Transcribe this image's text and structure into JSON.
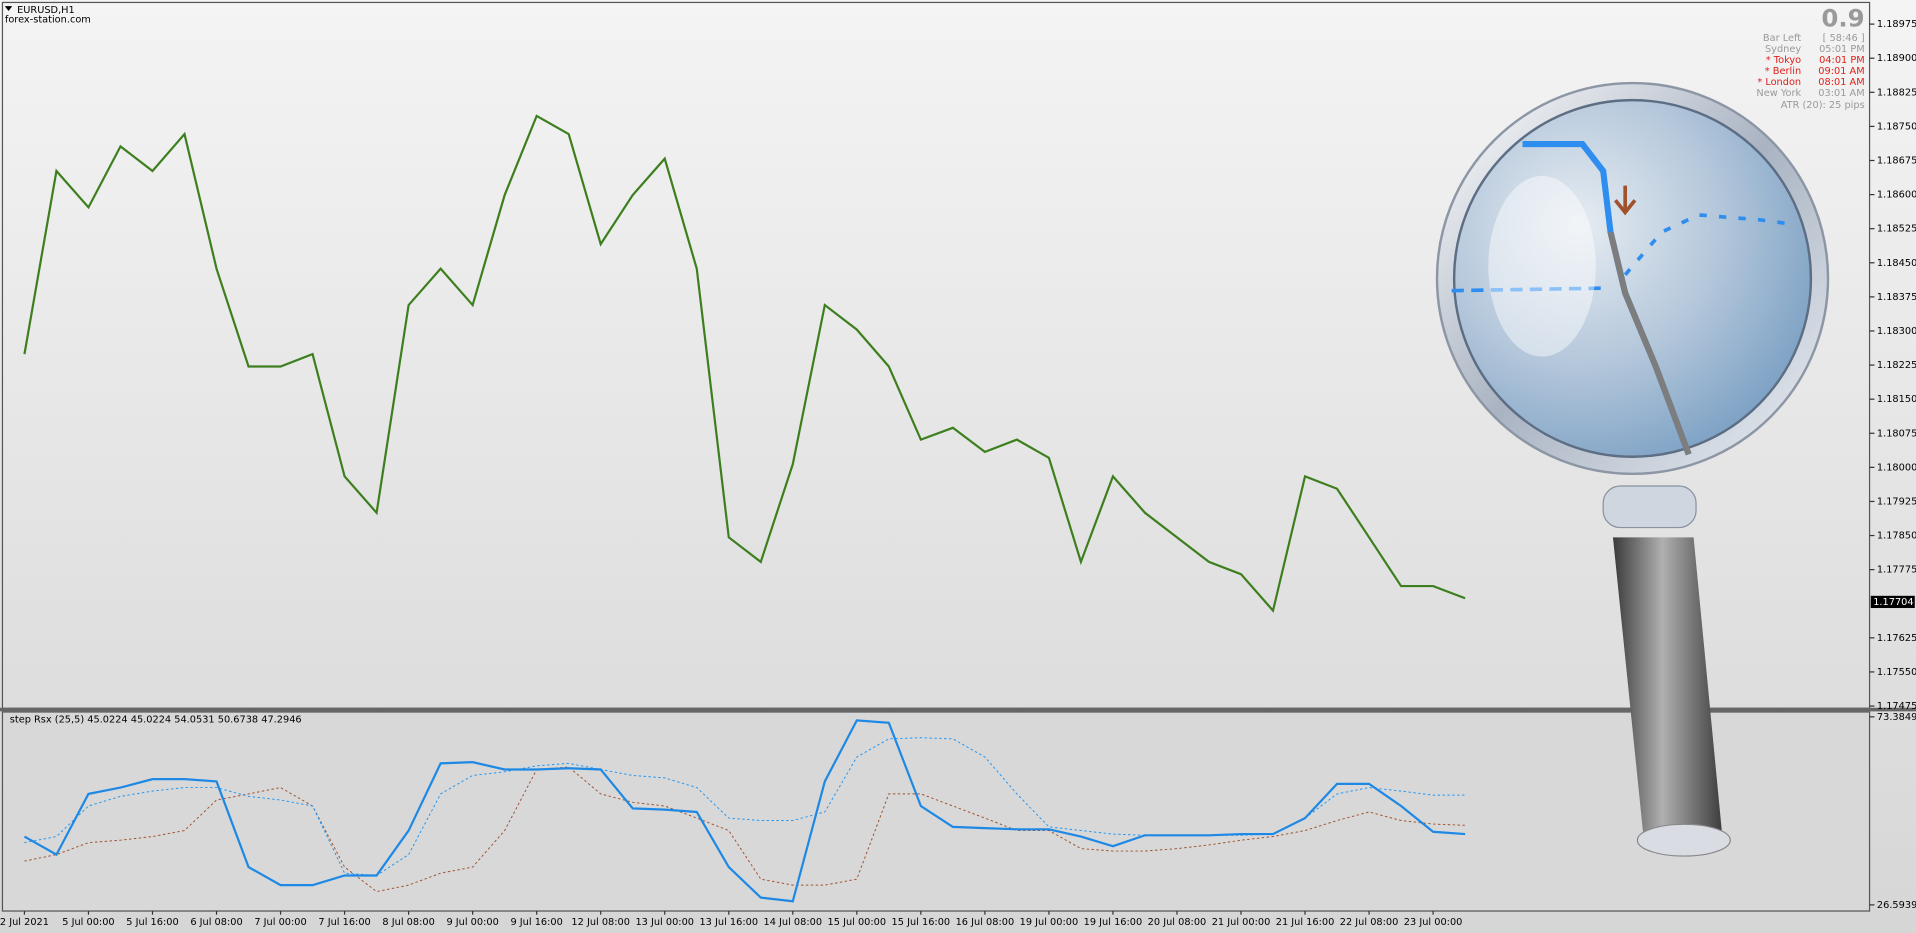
{
  "header": {
    "symbol": "EURUSD,H1",
    "source": "forex-station.com"
  },
  "info_panel": {
    "spread": "0.9",
    "rows": [
      {
        "label": "Bar Left",
        "value": "[ 58:46 ]"
      },
      {
        "label": "Sydney",
        "value": "05:01 PM"
      },
      {
        "label": "* Tokyo",
        "value": "04:01 PM"
      },
      {
        "label": "* Berlin",
        "value": "09:01 AM"
      },
      {
        "label": "* London",
        "value": "08:01 AM"
      },
      {
        "label": "New York",
        "value": "03:01 AM"
      }
    ],
    "atr": "ATR (20): 25 pips"
  },
  "chart_data": [
    {
      "type": "line",
      "series": [
        {
          "color": "#3d7f1e",
          "values": [
            1.18249,
            1.18652,
            1.18572,
            1.18706,
            1.18652,
            1.18733,
            1.18437,
            1.18222,
            1.18222,
            1.18249,
            1.1798,
            1.179,
            1.18357,
            1.18437,
            1.18357,
            1.18599,
            1.18773,
            1.18733,
            1.18491,
            1.18599,
            1.18679,
            1.18437,
            1.17846,
            1.17792,
            1.18007,
            1.18357,
            1.18303,
            1.18222,
            1.18061,
            1.18087,
            1.18034,
            1.18061,
            1.18021,
            1.17792,
            1.1798,
            1.179,
            1.17846,
            1.17792,
            1.17765,
            1.17685,
            1.1798,
            1.17953,
            1.17846,
            1.17739,
            1.17739,
            1.17712
          ]
        }
      ],
      "ylim": [
        1.1747,
        1.1902
      ],
      "yticks": [
        1.18975,
        {
          "value": 1.189,
          "label": "1.18900"
        },
        1.18825,
        {
          "value": 1.1875,
          "label": "1.18750"
        },
        1.18675,
        {
          "value": 1.186,
          "label": "1.18600"
        },
        1.18525,
        {
          "value": 1.1845,
          "label": "1.18450"
        },
        1.18375,
        {
          "value": 1.183,
          "label": "1.18300"
        },
        1.18225,
        {
          "value": 1.1815,
          "label": "1.18150"
        },
        1.18075,
        {
          "value": 1.18,
          "label": "1.18000"
        },
        1.17925,
        {
          "value": 1.1785,
          "label": "1.17850"
        },
        1.17775,
        1.17625,
        {
          "value": 1.1755,
          "label": "1.17550"
        },
        1.17475
      ],
      "last_price": 1.17704
    },
    {
      "type": "line",
      "title": "step Rsx (25,5) 45.0224 45.0224 54.0531 50.6738 47.2946",
      "categories": [
        "2 Jul 2021",
        null,
        "5 Jul 00:00",
        null,
        "5 Jul 16:00",
        null,
        "6 Jul 08:00",
        null,
        "7 Jul 00:00",
        null,
        "7 Jul 16:00",
        null,
        "8 Jul 08:00",
        null,
        "9 Jul 00:00",
        null,
        "9 Jul 16:00",
        null,
        "12 Jul 08:00",
        null,
        "13 Jul 00:00",
        null,
        "13 Jul 16:00",
        null,
        "14 Jul 08:00",
        null,
        "15 Jul 00:00",
        null,
        "15 Jul 16:00",
        null,
        "16 Jul 08:00",
        null,
        "19 Jul 00:00",
        null,
        "19 Jul 16:00",
        null,
        "20 Jul 08:00",
        null,
        "21 Jul 00:00",
        null,
        "21 Jul 16:00",
        null,
        "22 Jul 08:00",
        null,
        "23 Jul 00:00",
        null
      ],
      "series": [
        {
          "color": "#a0522d",
          "dashed": true,
          "values": [
            37.5,
            39.1,
            42.1,
            42.7,
            43.6,
            45.1,
            52.7,
            54.2,
            55.8,
            51.2,
            36.0,
            29.9,
            31.5,
            34.5,
            36.0,
            45.1,
            60.3,
            60.9,
            54.2,
            52.1,
            51.2,
            48.2,
            45.1,
            33.0,
            31.5,
            31.5,
            33.0,
            54.2,
            54.2,
            51.2,
            48.2,
            45.1,
            45.1,
            40.6,
            40.0,
            40.0,
            40.6,
            41.5,
            42.7,
            43.6,
            45.1,
            47.6,
            49.7,
            47.6,
            46.7,
            46.4
          ]
        },
        {
          "color": "#2196f3",
          "dashed": true,
          "values": [
            42.1,
            43.6,
            51.2,
            53.6,
            54.9,
            55.8,
            55.8,
            53.6,
            52.7,
            51.2,
            34.5,
            33.9,
            39.1,
            54.2,
            58.8,
            59.7,
            61.2,
            61.8,
            60.3,
            58.8,
            58.2,
            55.8,
            48.2,
            47.6,
            47.6,
            49.7,
            63.4,
            67.9,
            68.2,
            67.9,
            63.4,
            54.2,
            46.0,
            45.1,
            44.2,
            43.9,
            43.9,
            43.9,
            43.9,
            44.2,
            48.2,
            54.2,
            55.8,
            54.9,
            53.9,
            53.9
          ]
        },
        {
          "color": "#1e88e5",
          "dashed": false,
          "values": [
            43.6,
            39.1,
            54.2,
            55.8,
            57.9,
            57.9,
            57.3,
            36.0,
            31.5,
            31.5,
            33.9,
            33.9,
            45.1,
            61.8,
            62.1,
            60.3,
            60.3,
            60.6,
            60.3,
            50.6,
            50.3,
            49.7,
            36.0,
            28.4,
            27.5,
            57.3,
            72.5,
            71.9,
            51.2,
            46.0,
            45.7,
            45.4,
            45.4,
            43.6,
            41.2,
            43.9,
            43.9,
            43.9,
            44.2,
            44.2,
            48.2,
            56.7,
            56.7,
            51.2,
            44.8,
            44.2
          ]
        }
      ],
      "ylim": [
        25.07,
        74.6
      ],
      "yticks": [
        73.3849,
        26.5939
      ]
    }
  ]
}
